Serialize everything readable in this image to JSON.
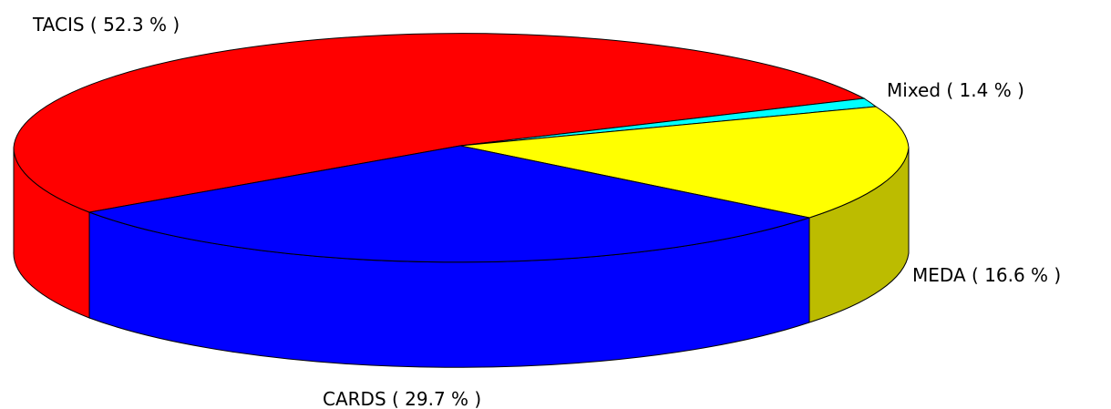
{
  "chart_data": {
    "type": "pie",
    "style": "3d",
    "slices": [
      {
        "name": "Mixed",
        "value": 1.4,
        "label": "Mixed ( 1.4 % )",
        "color": "#00ffff"
      },
      {
        "name": "MEDA",
        "value": 16.6,
        "label": "MEDA ( 16.6 % )",
        "color": "#ffff00",
        "side_color": "#bcbc00"
      },
      {
        "name": "CARDS",
        "value": 29.7,
        "label": "CARDS ( 29.7 % )",
        "color": "#0000ff"
      },
      {
        "name": "TACIS",
        "value": 52.3,
        "label": "TACIS ( 52.3 % )",
        "color": "#ff0000"
      }
    ]
  }
}
